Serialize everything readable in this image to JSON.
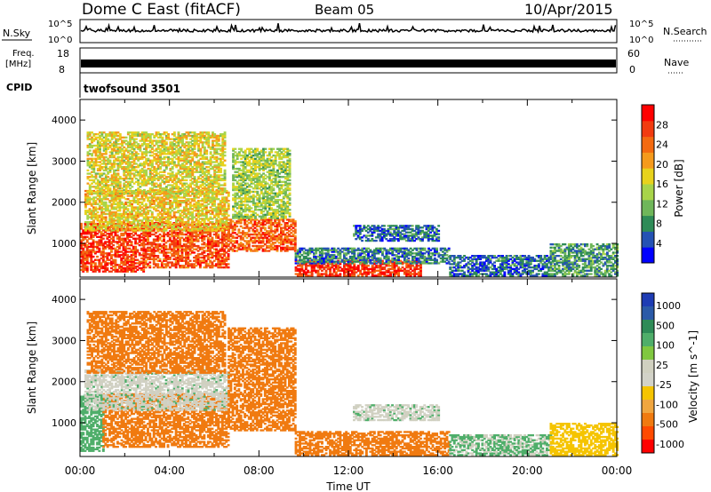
{
  "header": {
    "radar": "Dome C East (fitACF)",
    "beam": "Beam 05",
    "date": "10/Apr/2015"
  },
  "nsky_panel": {
    "left_label": "N.Sky",
    "right_label": "N.Search",
    "left_ticks": [
      "10^5",
      "10^0"
    ],
    "right_ticks": [
      "10^5",
      "10^0"
    ]
  },
  "freq_panel": {
    "left_label_1": "Freq.",
    "left_label_2": "[MHz]",
    "right_label": "Nave",
    "left_ticks": [
      "18",
      "8"
    ],
    "right_ticks": [
      "60",
      "0"
    ]
  },
  "cpid": {
    "label": "CPID",
    "program": "twofsound 3501"
  },
  "colors": {
    "power": [
      "#0000ff",
      "#2452b4",
      "#2e8b57",
      "#6fb65a",
      "#a8d44a",
      "#e8d21c",
      "#f59a1c",
      "#f46a10",
      "#f23b10",
      "#ff0000"
    ],
    "velocity": [
      "#ff0000",
      "#ff4a00",
      "#f07a10",
      "#f0a640",
      "#f5c400",
      "#d2d2c8",
      "#d0d0c0",
      "#80c840",
      "#4fae6a",
      "#2e8b57",
      "#2b5aa8",
      "#1e3cb4"
    ]
  },
  "chart_data": [
    {
      "type": "heatmap",
      "name": "power",
      "xlabel": "",
      "ylabel": "Slant Range [km]",
      "xlim": [
        0,
        24
      ],
      "ylim": [
        180,
        4500
      ],
      "yticks": [
        1000,
        2000,
        3000,
        4000
      ],
      "colorbar_label": "Power [dB]",
      "colorbar_range": [
        0,
        32
      ],
      "colorbar_ticks": [
        4,
        8,
        12,
        16,
        20,
        24,
        28
      ],
      "regions": [
        {
          "t0": 0.0,
          "t1": 2.8,
          "r0": 300,
          "r1": 1500,
          "value": 27
        },
        {
          "t0": 2.8,
          "t1": 6.6,
          "r0": 400,
          "r1": 1500,
          "value": 26
        },
        {
          "t0": 0.2,
          "t1": 6.6,
          "r0": 1300,
          "r1": 2300,
          "value": 18
        },
        {
          "t0": 0.3,
          "t1": 6.5,
          "r0": 2200,
          "r1": 3700,
          "value": 17
        },
        {
          "t0": 6.6,
          "t1": 9.6,
          "r0": 800,
          "r1": 1600,
          "value": 25
        },
        {
          "t0": 6.8,
          "t1": 9.4,
          "r0": 1600,
          "r1": 3300,
          "value": 14
        },
        {
          "t0": 9.6,
          "t1": 15.2,
          "r0": 200,
          "r1": 600,
          "value": 28
        },
        {
          "t0": 9.6,
          "t1": 16.5,
          "r0": 500,
          "r1": 900,
          "value": 7
        },
        {
          "t0": 12.2,
          "t1": 16.0,
          "r0": 1050,
          "r1": 1450,
          "value": 6
        },
        {
          "t0": 16.5,
          "t1": 21.0,
          "r0": 200,
          "r1": 700,
          "value": 6
        },
        {
          "t0": 21.0,
          "t1": 24.0,
          "r0": 200,
          "r1": 1000,
          "value": 9
        }
      ]
    },
    {
      "type": "heatmap",
      "name": "velocity",
      "xlabel": "Time UT",
      "ylabel": "Slant Range [km]",
      "xlim": [
        0,
        24
      ],
      "ylim": [
        180,
        4500
      ],
      "xticks": [
        "00:00",
        "04:00",
        "08:00",
        "12:00",
        "16:00",
        "20:00",
        "00:00"
      ],
      "yticks": [
        1000,
        2000,
        3000,
        4000
      ],
      "colorbar_label": "Velocity [m s^-1]",
      "colorbar_ticks": [
        "1000",
        "500",
        "100",
        "25",
        "-25",
        "-100",
        "-500",
        "-1000"
      ],
      "regions": [
        {
          "t0": 0.0,
          "t1": 1.0,
          "r0": 300,
          "r1": 1700,
          "value": 60
        },
        {
          "t0": 1.0,
          "t1": 6.6,
          "r0": 400,
          "r1": 1700,
          "value": -300
        },
        {
          "t0": 0.2,
          "t1": 6.6,
          "r0": 1300,
          "r1": 2300,
          "value": 10
        },
        {
          "t0": 0.3,
          "t1": 6.5,
          "r0": 2200,
          "r1": 3700,
          "value": -150
        },
        {
          "t0": 6.6,
          "t1": 9.6,
          "r0": 800,
          "r1": 3300,
          "value": -200
        },
        {
          "t0": 9.6,
          "t1": 16.5,
          "r0": 200,
          "r1": 800,
          "value": -150
        },
        {
          "t0": 12.2,
          "t1": 16.0,
          "r0": 1050,
          "r1": 1450,
          "value": 10
        },
        {
          "t0": 16.5,
          "t1": 21.0,
          "r0": 200,
          "r1": 700,
          "value": 30
        },
        {
          "t0": 21.0,
          "t1": 24.0,
          "r0": 200,
          "r1": 1000,
          "value": -60
        }
      ]
    }
  ]
}
